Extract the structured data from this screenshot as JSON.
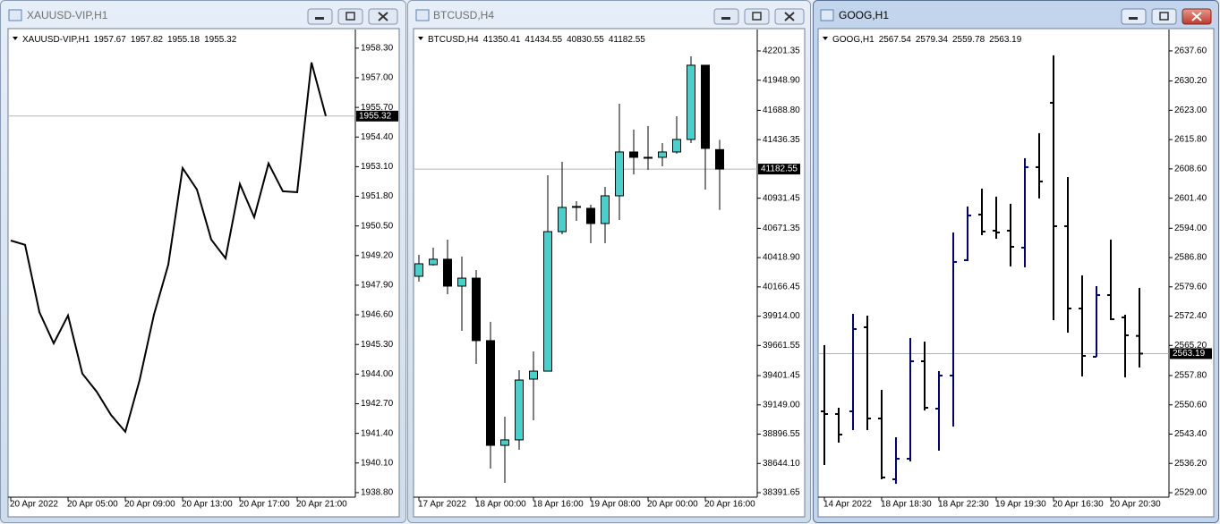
{
  "chart_data": [
    {
      "type": "line",
      "title": "XAUUSD-VIP,H1",
      "ohlc": [
        1957.67,
        1957.82,
        1955.18,
        1955.32
      ],
      "color": "#000000",
      "categories": [
        "20 Apr 2022",
        null,
        null,
        null,
        "20 Apr 05:00",
        null,
        null,
        null,
        "20 Apr 09:00",
        null,
        null,
        null,
        "20 Apr 13:00",
        null,
        null,
        null,
        "20 Apr 17:00",
        null,
        null,
        null,
        "20 Apr 21:00",
        null,
        null
      ],
      "values": [
        1949.86,
        1949.67,
        1946.72,
        1945.35,
        1946.57,
        1944.02,
        1943.23,
        1942.21,
        1941.47,
        1943.74,
        1946.61,
        1948.8,
        1953.04,
        1952.1,
        1949.9,
        1949.08,
        1952.34,
        1950.88,
        1953.24,
        1952.02,
        1951.98,
        1957.67,
        1955.32
      ],
      "ylim": [
        1938.6,
        1959.0
      ],
      "yticks": [
        {
          "value": 1958.3,
          "label": "1958.30"
        },
        {
          "value": 1957.0,
          "label": "1957.00"
        },
        {
          "value": 1955.7,
          "label": "1955.70"
        },
        {
          "value": 1954.4,
          "label": "1954.40"
        },
        {
          "value": 1953.1,
          "label": "1953.10"
        },
        {
          "value": 1951.8,
          "label": "1951.80"
        },
        {
          "value": 1950.5,
          "label": "1950.50"
        },
        {
          "value": 1949.2,
          "label": "1949.20"
        },
        {
          "value": 1947.9,
          "label": "1947.90"
        },
        {
          "value": 1946.6,
          "label": "1946.60"
        },
        {
          "value": 1945.3,
          "label": "1945.30"
        },
        {
          "value": 1944.0,
          "label": "1944.00"
        },
        {
          "value": 1942.7,
          "label": "1942.70"
        },
        {
          "value": 1941.4,
          "label": "1941.40"
        },
        {
          "value": 1940.1,
          "label": "1940.10"
        },
        {
          "value": 1938.8,
          "label": "1938.80"
        }
      ]
    },
    {
      "type": "candlestick",
      "title": "BTCUSD,H4",
      "ohlc": [
        41350.41,
        41434.55,
        40830.55,
        41182.55
      ],
      "up_color": "#48d1cc",
      "down_color": "#000000",
      "categories": [
        "17 Apr 2022",
        null,
        null,
        null,
        "18 Apr 00:00",
        null,
        null,
        null,
        "18 Apr 16:00",
        null,
        null,
        null,
        "19 Apr 08:00",
        null,
        null,
        null,
        "20 Apr 00:00",
        null,
        null,
        null,
        "20 Apr 16:00",
        null
      ],
      "open": [
        40258,
        40358,
        40405,
        40173,
        40242,
        39703,
        38800,
        38847,
        39371,
        39440,
        40643,
        40852,
        40844,
        40713,
        40952,
        41330,
        41284,
        41284,
        41330,
        41438,
        42078,
        41350.41
      ],
      "high": [
        40443,
        40505,
        40574,
        40428,
        40312,
        39865,
        39047,
        39448,
        39610,
        41129,
        41245,
        40906,
        40875,
        41029,
        41746,
        41523,
        41553,
        41407,
        41638,
        42155,
        42078,
        41434.55
      ],
      "low": [
        40212,
        40350,
        40104,
        39787,
        39502,
        38600,
        38476,
        38762,
        39016,
        39440,
        40620,
        40736,
        40543,
        40543,
        40744,
        41137,
        41176,
        41206,
        41315,
        41407,
        41006,
        40830.55
      ],
      "close": [
        40366,
        40405,
        40173,
        40242,
        39703,
        38800,
        38847,
        39363,
        39440,
        40643,
        40852,
        40860,
        40713,
        40952,
        41330,
        41284,
        41276,
        41330,
        41438,
        42078,
        41361,
        41182.55
      ],
      "ylim": [
        38353,
        42363
      ],
      "yticks": [
        42201.35,
        {
          "value": 41948.9,
          "label": "41948.90"
        },
        {
          "value": 41688.8,
          "label": "41688.80"
        },
        41436.35,
        40931.45,
        40671.35,
        {
          "value": 40418.9,
          "label": "40418.90"
        },
        40166.45,
        {
          "value": 39914,
          "label": "39914.00"
        },
        39661.55,
        39401.45,
        {
          "value": 39149,
          "label": "39149.00"
        },
        38896.55,
        {
          "value": 38644.1,
          "label": "38644.10"
        },
        38391.65
      ]
    },
    {
      "type": "ohlc",
      "title": "GOOG,H1",
      "ohlc": [
        2567.54,
        2579.34,
        2559.78,
        2563.19
      ],
      "up_color": "#000080",
      "down_color": "#000000",
      "categories": [
        "14 Apr 2022",
        null,
        null,
        null,
        "18 Apr 18:30",
        null,
        null,
        null,
        "18 Apr 22:30",
        null,
        null,
        null,
        "19 Apr 19:30",
        null,
        null,
        null,
        "20 Apr 16:30",
        null,
        null,
        null,
        "20 Apr 20:30",
        null,
        null
      ],
      "open": [
        2549.0,
        2548.34,
        2549.0,
        2569.67,
        2547.24,
        2532.3,
        2537.35,
        2561.31,
        2549.66,
        2557.8,
        2586.16,
        2597.37,
        2593.41,
        2593.41,
        2589.24,
        2609.02,
        2624.85,
        2594.51,
        2574.28,
        2562.41,
        2577.58,
        2572.09,
        2567.54
      ],
      "high": [
        2565.27,
        2549.88,
        2572.97,
        2572.53,
        2554.28,
        2542.63,
        2567.03,
        2566.15,
        2558.9,
        2592.97,
        2599.35,
        2603.74,
        2601.77,
        2600.01,
        2611.22,
        2617.37,
        2636.5,
        2606.6,
        2582.42,
        2579.78,
        2591.21,
        2572.75,
        2579.34
      ],
      "low": [
        2535.81,
        2541.31,
        2544.39,
        2544.39,
        2532.3,
        2531.2,
        2536.69,
        2549.22,
        2539.33,
        2545.27,
        2585.94,
        2592.31,
        2591.43,
        2584.62,
        2584.4,
        2601.33,
        2571.43,
        2568.35,
        2557.58,
        2562.41,
        2571.43,
        2557.36,
        2559.78
      ],
      "close": [
        2548.34,
        2543.29,
        2569.23,
        2547.24,
        2532.74,
        2537.35,
        2561.31,
        2549.88,
        2557.8,
        2585.72,
        2597.15,
        2593.19,
        2592.97,
        2589.45,
        2609.02,
        2605.5,
        2594.51,
        2574.28,
        2562.63,
        2577.58,
        2571.65,
        2567.69,
        2563.19
      ],
      "ylim": [
        2527.9,
        2642.2
      ],
      "yticks": [
        {
          "value": 2637.6,
          "label": "2637.60"
        },
        {
          "value": 2630.2,
          "label": "2630.20"
        },
        {
          "value": 2623.0,
          "label": "2623.00"
        },
        {
          "value": 2615.8,
          "label": "2615.80"
        },
        {
          "value": 2608.6,
          "label": "2608.60"
        },
        {
          "value": 2601.4,
          "label": "2601.40"
        },
        {
          "value": 2594.0,
          "label": "2594.00"
        },
        {
          "value": 2586.8,
          "label": "2586.80"
        },
        {
          "value": 2579.6,
          "label": "2579.60"
        },
        {
          "value": 2572.4,
          "label": "2572.40"
        },
        {
          "value": 2565.2,
          "label": "2565.20"
        },
        {
          "value": 2557.8,
          "label": "2557.80"
        },
        {
          "value": 2550.6,
          "label": "2550.60"
        },
        {
          "value": 2543.4,
          "label": "2543.40"
        },
        {
          "value": 2536.2,
          "label": "2536.20"
        },
        {
          "value": 2529.0,
          "label": "2529.00"
        }
      ]
    }
  ]
}
